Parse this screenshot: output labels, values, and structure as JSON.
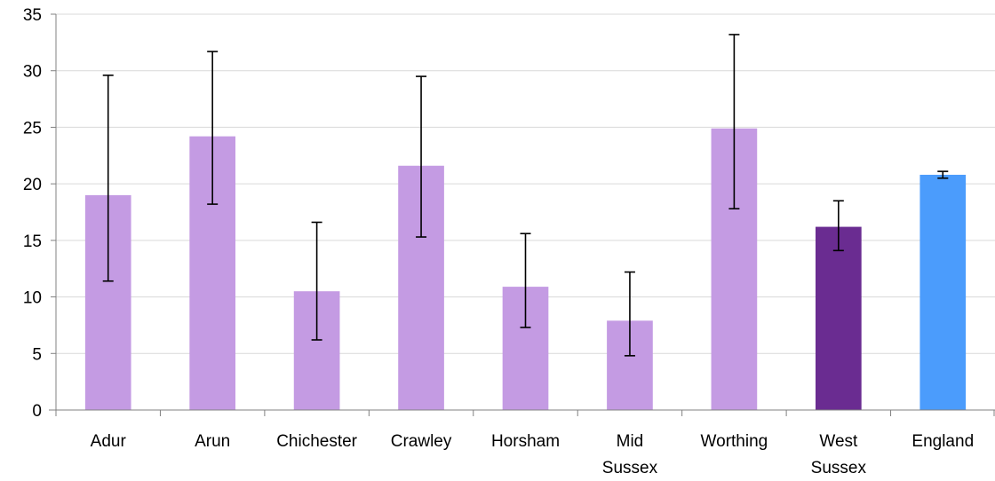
{
  "chart_data": {
    "type": "bar",
    "title": "",
    "xlabel": "",
    "ylabel": "",
    "ylim": [
      0,
      35
    ],
    "yticks": [
      0,
      5,
      10,
      15,
      20,
      25,
      30,
      35
    ],
    "grid": true,
    "legend": "none",
    "categories": [
      [
        "Adur"
      ],
      [
        "Arun"
      ],
      [
        "Chichester"
      ],
      [
        "Crawley"
      ],
      [
        "Horsham"
      ],
      [
        "Mid",
        "Sussex"
      ],
      [
        "Worthing"
      ],
      [
        "West",
        "Sussex"
      ],
      [
        "England"
      ]
    ],
    "values": [
      19.0,
      24.2,
      10.5,
      21.6,
      10.9,
      7.9,
      24.9,
      16.2,
      20.8
    ],
    "error_low": [
      11.4,
      18.2,
      6.2,
      15.3,
      7.3,
      4.8,
      17.8,
      14.1,
      20.5
    ],
    "error_high": [
      29.6,
      31.7,
      16.6,
      29.5,
      15.6,
      12.2,
      33.2,
      18.5,
      21.1
    ],
    "colors": [
      "#c49be3",
      "#c49be3",
      "#c49be3",
      "#c49be3",
      "#c49be3",
      "#c49be3",
      "#c49be3",
      "#6a2c91",
      "#4b9cfc"
    ]
  }
}
